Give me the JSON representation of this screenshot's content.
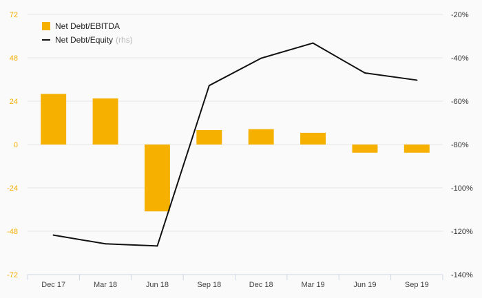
{
  "chart_data": {
    "type": "bar",
    "categories": [
      "Dec 17",
      "Mar 18",
      "Jun 18",
      "Sep 18",
      "Dec 18",
      "Mar 19",
      "Jun 19",
      "Sep 19"
    ],
    "series": [
      {
        "name": "Net Debt/EBITDA",
        "type": "bar",
        "axis": "left",
        "color": "#f5b000",
        "values": [
          28,
          25.5,
          -37,
          8,
          8.5,
          6.5,
          -4.5,
          -4.5
        ]
      },
      {
        "name": "Net Debt/Equity",
        "type": "line",
        "axis": "right",
        "color": "#111111",
        "values": [
          -121.8,
          -125.8,
          -126.8,
          -52.8,
          -40.2,
          -33.2,
          -47.0,
          -50.3
        ]
      }
    ],
    "rhs_note": "(rhs)",
    "left_axis": {
      "ylim": [
        -72,
        72
      ],
      "ticks": [
        72,
        48,
        24,
        0,
        -24,
        -48,
        -72
      ],
      "tick_labels": [
        "72",
        "48",
        "24",
        "0",
        "-24",
        "-48",
        "-72"
      ],
      "color": "#f5b000"
    },
    "right_axis": {
      "ylim": [
        -140,
        -20
      ],
      "ticks": [
        -20,
        -40,
        -60,
        -80,
        -100,
        -120,
        -140
      ],
      "tick_labels": [
        "-20%",
        "-40%",
        "-60%",
        "-80%",
        "-100%",
        "-120%",
        "-140%"
      ]
    },
    "grid": true,
    "legend_position": "top-left"
  }
}
